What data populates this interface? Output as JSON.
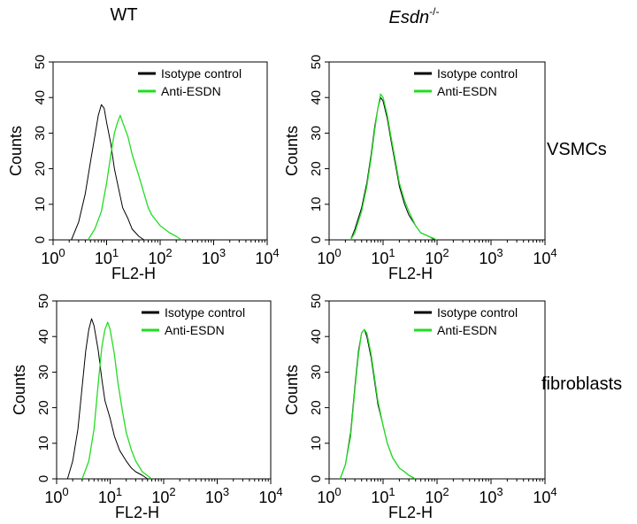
{
  "figure": {
    "column_titles": [
      {
        "text": "WT"
      },
      {
        "text": "Esdn",
        "superscript": "-/-"
      }
    ],
    "row_labels": [
      "VSMCs",
      "fibroblasts"
    ]
  },
  "colors": {
    "isotype": "#000000",
    "anti": "#22dd22",
    "axis": "#000000"
  },
  "chart_data": [
    {
      "type": "line",
      "panel": "WT / VSMCs",
      "xlabel": "FL2-H",
      "ylabel": "Counts",
      "xscale": "log",
      "xlim": [
        1,
        10000
      ],
      "ylim": [
        0,
        50
      ],
      "xticks": [
        1,
        10,
        100,
        1000,
        10000
      ],
      "xtick_labels": [
        [
          "10",
          "0"
        ],
        [
          "10",
          "1"
        ],
        [
          "10",
          "2"
        ],
        [
          "10",
          "3"
        ],
        [
          "10",
          "4"
        ]
      ],
      "yticks": [
        0,
        10,
        20,
        30,
        40,
        50
      ],
      "legend": {
        "position": "top-right",
        "entries": [
          "Isotype control",
          "Anti-ESDN"
        ]
      },
      "series": [
        {
          "name": "Isotype control",
          "x": [
            2.2,
            3,
            4,
            5,
            6,
            7,
            8,
            9,
            10,
            12,
            14,
            17,
            20,
            25,
            30,
            40,
            50
          ],
          "y": [
            0,
            5,
            13,
            22,
            29,
            35,
            38,
            37,
            33,
            27,
            20,
            14,
            9,
            6,
            3,
            1,
            0
          ]
        },
        {
          "name": "Anti-ESDN",
          "x": [
            4.5,
            6,
            8,
            10,
            12,
            14,
            16,
            18,
            20,
            25,
            30,
            40,
            50,
            60,
            70,
            100,
            150,
            200,
            250
          ],
          "y": [
            0,
            3,
            8,
            16,
            24,
            30,
            33,
            35,
            33,
            29,
            24,
            18,
            13,
            9,
            7,
            4,
            2,
            1,
            0
          ]
        }
      ]
    },
    {
      "type": "line",
      "panel": "Esdn-/- / VSMCs",
      "xlabel": "FL2-H",
      "ylabel": "Counts",
      "xscale": "log",
      "xlim": [
        1,
        10000
      ],
      "ylim": [
        0,
        50
      ],
      "xticks": [
        1,
        10,
        100,
        1000,
        10000
      ],
      "xtick_labels": [
        [
          "10",
          "0"
        ],
        [
          "10",
          "1"
        ],
        [
          "10",
          "2"
        ],
        [
          "10",
          "3"
        ],
        [
          "10",
          "4"
        ]
      ],
      "yticks": [
        0,
        10,
        20,
        30,
        40,
        50
      ],
      "legend": {
        "position": "top-right",
        "entries": [
          "Isotype control",
          "Anti-ESDN"
        ]
      },
      "series": [
        {
          "name": "Isotype control",
          "x": [
            2.5,
            3,
            4,
            5,
            6,
            7,
            8,
            9,
            10,
            12,
            14,
            17,
            20,
            25,
            30,
            40,
            50,
            70,
            90
          ],
          "y": [
            0,
            3,
            9,
            16,
            24,
            32,
            37,
            40,
            39,
            34,
            28,
            21,
            15,
            10,
            7,
            4,
            2,
            1,
            0
          ]
        },
        {
          "name": "Anti-ESDN",
          "x": [
            2.5,
            3,
            4,
            5,
            6,
            7,
            8,
            9,
            10,
            12,
            14,
            17,
            20,
            25,
            30,
            40,
            50,
            70,
            100
          ],
          "y": [
            0,
            2,
            8,
            15,
            23,
            31,
            37,
            41,
            40,
            35,
            29,
            22,
            16,
            11,
            8,
            4,
            2,
            1,
            0
          ]
        }
      ]
    },
    {
      "type": "line",
      "panel": "WT / fibroblasts",
      "xlabel": "FL2-H",
      "ylabel": "Counts",
      "xscale": "log",
      "xlim": [
        1,
        10000
      ],
      "ylim": [
        0,
        50
      ],
      "xticks": [
        1,
        10,
        100,
        1000,
        10000
      ],
      "xtick_labels": [
        [
          "10",
          "0"
        ],
        [
          "10",
          "1"
        ],
        [
          "10",
          "2"
        ],
        [
          "10",
          "3"
        ],
        [
          "10",
          "4"
        ]
      ],
      "yticks": [
        0,
        10,
        20,
        30,
        40,
        50
      ],
      "legend": {
        "position": "top-right",
        "entries": [
          "Isotype control",
          "Anti-ESDN"
        ]
      },
      "series": [
        {
          "name": "Isotype control",
          "x": [
            1.6,
            2,
            2.5,
            3,
            3.5,
            4,
            4.5,
            5,
            6,
            7,
            8,
            10,
            12,
            15,
            20,
            25,
            30,
            40,
            50
          ],
          "y": [
            0,
            5,
            14,
            26,
            36,
            42,
            45,
            43,
            36,
            28,
            22,
            17,
            12,
            8,
            5,
            3,
            2,
            1,
            0
          ]
        },
        {
          "name": "Anti-ESDN",
          "x": [
            3,
            4,
            5,
            6,
            7,
            8,
            9,
            10,
            12,
            14,
            17,
            20,
            25,
            30,
            40,
            60
          ],
          "y": [
            0,
            5,
            14,
            27,
            37,
            42,
            44,
            42,
            35,
            27,
            19,
            13,
            8,
            5,
            2,
            0
          ]
        }
      ]
    },
    {
      "type": "line",
      "panel": "Esdn-/- / fibroblasts",
      "xlabel": "FL2-H",
      "ylabel": "Counts",
      "xscale": "log",
      "xlim": [
        1,
        10000
      ],
      "ylim": [
        0,
        50
      ],
      "xticks": [
        1,
        10,
        100,
        1000,
        10000
      ],
      "xtick_labels": [
        [
          "10",
          "0"
        ],
        [
          "10",
          "1"
        ],
        [
          "10",
          "2"
        ],
        [
          "10",
          "3"
        ],
        [
          "10",
          "4"
        ]
      ],
      "yticks": [
        0,
        10,
        20,
        30,
        40,
        50
      ],
      "legend": {
        "position": "top-right",
        "entries": [
          "Isotype control",
          "Anti-ESDN"
        ]
      },
      "series": [
        {
          "name": "Isotype control",
          "x": [
            1.6,
            2,
            2.5,
            3,
            3.5,
            4,
            4.5,
            5,
            6,
            7,
            8,
            10,
            12,
            15,
            20,
            25,
            30,
            40
          ],
          "y": [
            0,
            4,
            13,
            26,
            36,
            41,
            42,
            40,
            34,
            27,
            21,
            15,
            10,
            6,
            3,
            2,
            1,
            0
          ]
        },
        {
          "name": "Anti-ESDN",
          "x": [
            1.6,
            2,
            2.5,
            3,
            3.5,
            4,
            4.5,
            5,
            6,
            7,
            8,
            10,
            12,
            15,
            20,
            25,
            30,
            40
          ],
          "y": [
            0,
            4,
            12,
            25,
            35,
            41,
            42,
            41,
            35,
            28,
            22,
            15,
            10,
            6,
            3,
            2,
            1,
            0
          ]
        }
      ]
    }
  ]
}
